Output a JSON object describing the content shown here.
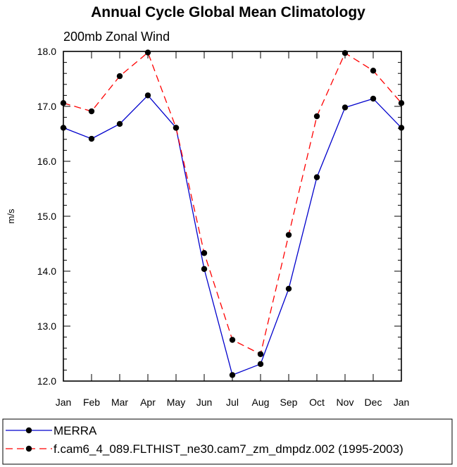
{
  "chart_data": {
    "type": "line",
    "title": "Annual Cycle Global Mean Climatology",
    "subtitle": "200mb Zonal Wind",
    "xlabel": "",
    "ylabel": "m/s",
    "categories": [
      "Jan",
      "Feb",
      "Mar",
      "Apr",
      "May",
      "Jun",
      "Jul",
      "Aug",
      "Sep",
      "Oct",
      "Nov",
      "Dec",
      "Jan"
    ],
    "ylim": [
      12.0,
      18.0
    ],
    "yticks": [
      "12.0",
      "13.0",
      "14.0",
      "15.0",
      "16.0",
      "17.0",
      "18.0"
    ],
    "grid": false,
    "legend_position": "bottom",
    "series": [
      {
        "name": "MERRA",
        "color": "#0000cc",
        "style": "solid",
        "marker": "filled-circle",
        "values": [
          16.61,
          16.41,
          16.68,
          17.2,
          16.61,
          14.04,
          12.11,
          12.31,
          13.68,
          15.71,
          16.98,
          17.14,
          16.61
        ]
      },
      {
        "name": "f.cam6_4_089.FLTHIST_ne30.cam7_zm_dmpdz.002 (1995-2003)",
        "color": "#ff0000",
        "style": "dashed",
        "marker": "filled-circle",
        "values": [
          17.06,
          16.91,
          17.55,
          17.98,
          16.61,
          14.33,
          12.75,
          12.49,
          14.66,
          16.82,
          17.97,
          17.65,
          17.06
        ]
      }
    ]
  }
}
